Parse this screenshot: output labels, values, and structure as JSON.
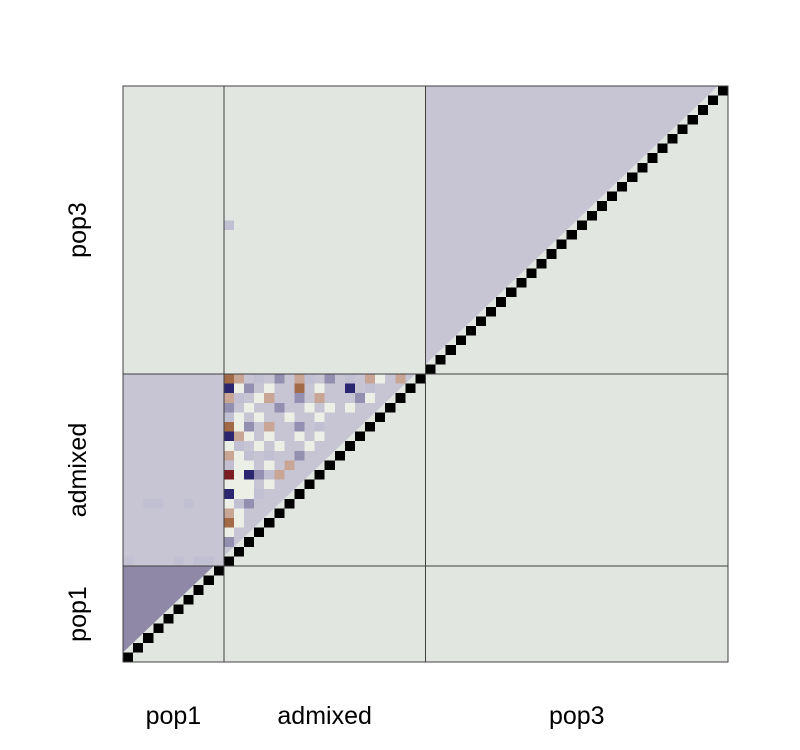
{
  "chart_data": {
    "type": "heatmap",
    "n": 60,
    "groups": [
      {
        "label": "pop1",
        "start": 0,
        "end": 10
      },
      {
        "label": "admixed",
        "start": 10,
        "end": 30
      },
      {
        "label": "pop3",
        "start": 30,
        "end": 60
      }
    ],
    "colors": {
      "background": "#e1e6e1",
      "diagonal": "#000000",
      "pop1_block": "#8f88a6",
      "light_block": "#c7c5d4",
      "grid_line": "#404040",
      "patch_light": "#c1bfd2",
      "patch_mid": "#938fb0",
      "patch_navy": "#2a2670",
      "patch_pale": "#ecefe6",
      "patch_rose": "#c8a595",
      "patch_brown": "#a36a48",
      "patch_maroon": "#7b1d22"
    },
    "special_cells": [
      {
        "row": 45,
        "col": 10,
        "level": "light"
      },
      {
        "row": 16,
        "col": 2,
        "level": "light"
      },
      {
        "row": 16,
        "col": 3,
        "level": "light"
      },
      {
        "row": 16,
        "col": 6,
        "level": "light"
      },
      {
        "row": 10,
        "col": 0,
        "level": "light"
      },
      {
        "row": 10,
        "col": 5,
        "level": "light"
      },
      {
        "row": 10,
        "col": 7,
        "level": "light"
      },
      {
        "row": 10,
        "col": 8,
        "level": "light"
      },
      {
        "row": 29,
        "col": 10,
        "level": "brown"
      },
      {
        "row": 29,
        "col": 11,
        "level": "rose"
      },
      {
        "row": 29,
        "col": 13,
        "level": "light"
      },
      {
        "row": 29,
        "col": 15,
        "level": "mid"
      },
      {
        "row": 29,
        "col": 17,
        "level": "rose"
      },
      {
        "row": 29,
        "col": 18,
        "level": "light"
      },
      {
        "row": 29,
        "col": 20,
        "level": "mid"
      },
      {
        "row": 29,
        "col": 22,
        "level": "light"
      },
      {
        "row": 29,
        "col": 24,
        "level": "rose"
      },
      {
        "row": 29,
        "col": 25,
        "level": "pale"
      },
      {
        "row": 29,
        "col": 27,
        "level": "rose"
      },
      {
        "row": 28,
        "col": 10,
        "level": "navy"
      },
      {
        "row": 28,
        "col": 11,
        "level": "pale"
      },
      {
        "row": 28,
        "col": 12,
        "level": "mid"
      },
      {
        "row": 28,
        "col": 14,
        "level": "pale"
      },
      {
        "row": 28,
        "col": 17,
        "level": "brown"
      },
      {
        "row": 28,
        "col": 19,
        "level": "pale"
      },
      {
        "row": 28,
        "col": 22,
        "level": "navy"
      },
      {
        "row": 28,
        "col": 24,
        "level": "light"
      },
      {
        "row": 27,
        "col": 10,
        "level": "rose"
      },
      {
        "row": 27,
        "col": 11,
        "level": "light"
      },
      {
        "row": 27,
        "col": 13,
        "level": "pale"
      },
      {
        "row": 27,
        "col": 14,
        "level": "rose"
      },
      {
        "row": 27,
        "col": 17,
        "level": "mid"
      },
      {
        "row": 27,
        "col": 19,
        "level": "rose"
      },
      {
        "row": 27,
        "col": 23,
        "level": "mid"
      },
      {
        "row": 27,
        "col": 24,
        "level": "pale"
      },
      {
        "row": 26,
        "col": 10,
        "level": "mid"
      },
      {
        "row": 26,
        "col": 12,
        "level": "pale"
      },
      {
        "row": 26,
        "col": 15,
        "level": "mid"
      },
      {
        "row": 26,
        "col": 18,
        "level": "pale"
      },
      {
        "row": 26,
        "col": 20,
        "level": "pale"
      },
      {
        "row": 26,
        "col": 22,
        "level": "pale"
      },
      {
        "row": 25,
        "col": 10,
        "level": "light"
      },
      {
        "row": 25,
        "col": 11,
        "level": "pale"
      },
      {
        "row": 25,
        "col": 13,
        "level": "pale"
      },
      {
        "row": 25,
        "col": 16,
        "level": "pale"
      },
      {
        "row": 25,
        "col": 19,
        "level": "pale"
      },
      {
        "row": 24,
        "col": 10,
        "level": "brown"
      },
      {
        "row": 24,
        "col": 11,
        "level": "pale"
      },
      {
        "row": 24,
        "col": 12,
        "level": "mid"
      },
      {
        "row": 24,
        "col": 14,
        "level": "rose"
      },
      {
        "row": 24,
        "col": 17,
        "level": "mid"
      },
      {
        "row": 24,
        "col": 19,
        "level": "light"
      },
      {
        "row": 23,
        "col": 10,
        "level": "navy"
      },
      {
        "row": 23,
        "col": 11,
        "level": "rose"
      },
      {
        "row": 23,
        "col": 12,
        "level": "pale"
      },
      {
        "row": 23,
        "col": 14,
        "level": "pale"
      },
      {
        "row": 23,
        "col": 17,
        "level": "pale"
      },
      {
        "row": 23,
        "col": 19,
        "level": "pale"
      },
      {
        "row": 22,
        "col": 10,
        "level": "pale"
      },
      {
        "row": 22,
        "col": 11,
        "level": "light"
      },
      {
        "row": 22,
        "col": 13,
        "level": "pale"
      },
      {
        "row": 22,
        "col": 15,
        "level": "pale"
      },
      {
        "row": 22,
        "col": 18,
        "level": "pale"
      },
      {
        "row": 21,
        "col": 10,
        "level": "rose"
      },
      {
        "row": 21,
        "col": 11,
        "level": "pale"
      },
      {
        "row": 21,
        "col": 12,
        "level": "light"
      },
      {
        "row": 21,
        "col": 14,
        "level": "light"
      },
      {
        "row": 21,
        "col": 17,
        "level": "mid"
      },
      {
        "row": 20,
        "col": 10,
        "level": "light"
      },
      {
        "row": 20,
        "col": 11,
        "level": "pale"
      },
      {
        "row": 20,
        "col": 12,
        "level": "pale"
      },
      {
        "row": 20,
        "col": 14,
        "level": "pale"
      },
      {
        "row": 20,
        "col": 16,
        "level": "rose"
      },
      {
        "row": 19,
        "col": 10,
        "level": "maroon"
      },
      {
        "row": 19,
        "col": 11,
        "level": "pale"
      },
      {
        "row": 19,
        "col": 12,
        "level": "navy"
      },
      {
        "row": 19,
        "col": 13,
        "level": "mid"
      },
      {
        "row": 19,
        "col": 14,
        "level": "light"
      },
      {
        "row": 19,
        "col": 15,
        "level": "rose"
      },
      {
        "row": 18,
        "col": 10,
        "level": "pale"
      },
      {
        "row": 18,
        "col": 11,
        "level": "pale"
      },
      {
        "row": 18,
        "col": 12,
        "level": "pale"
      },
      {
        "row": 18,
        "col": 14,
        "level": "pale"
      },
      {
        "row": 17,
        "col": 10,
        "level": "navy"
      },
      {
        "row": 17,
        "col": 11,
        "level": "pale"
      },
      {
        "row": 17,
        "col": 12,
        "level": "pale"
      },
      {
        "row": 17,
        "col": 13,
        "level": "light"
      },
      {
        "row": 16,
        "col": 10,
        "level": "pale"
      },
      {
        "row": 16,
        "col": 11,
        "level": "light"
      },
      {
        "row": 16,
        "col": 12,
        "level": "mid"
      },
      {
        "row": 15,
        "col": 10,
        "level": "rose"
      },
      {
        "row": 15,
        "col": 11,
        "level": "pale"
      },
      {
        "row": 14,
        "col": 10,
        "level": "brown"
      },
      {
        "row": 14,
        "col": 11,
        "level": "pale"
      },
      {
        "row": 13,
        "col": 10,
        "level": "pale"
      },
      {
        "row": 12,
        "col": 10,
        "level": "mid"
      }
    ]
  }
}
